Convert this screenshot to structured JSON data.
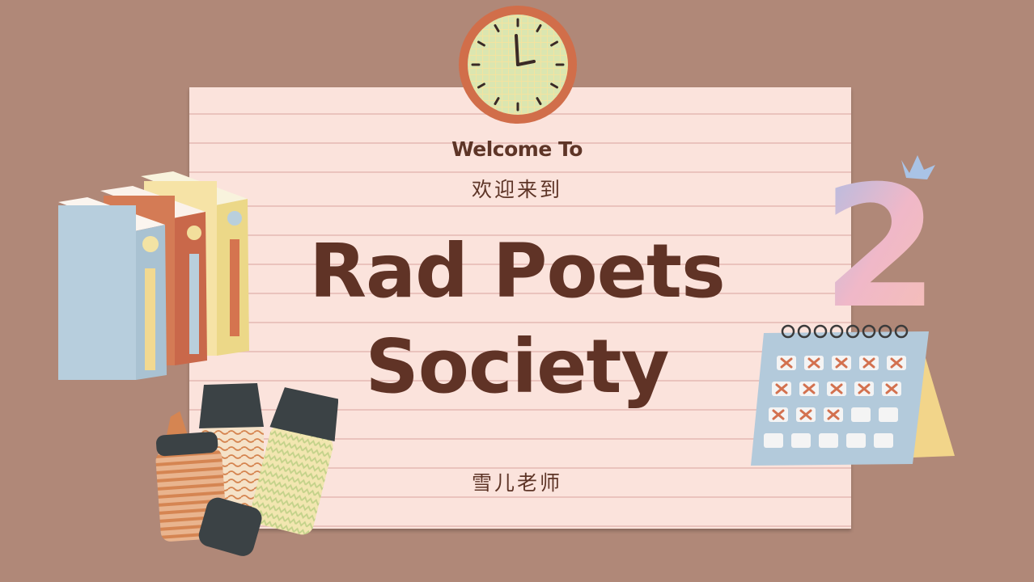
{
  "slide": {
    "welcome_en": "Welcome To",
    "welcome_cn": "欢迎来到",
    "title_line1": "Rad Poets",
    "title_line2": "Society",
    "teacher": "雪儿老师",
    "number_badge": "2"
  },
  "colors": {
    "background": "#b08878",
    "paper": "#fbe3dc",
    "text_brown": "#603326"
  },
  "icons": [
    "clock-icon",
    "books-icon",
    "markers-icon",
    "calendar-icon",
    "number-two-icon"
  ]
}
